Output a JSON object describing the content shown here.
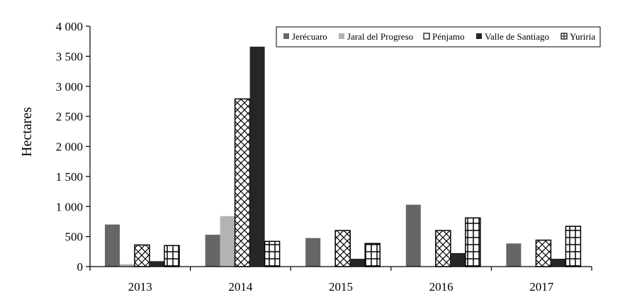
{
  "chart_data": {
    "type": "bar",
    "title": "",
    "xlabel": "",
    "ylabel": "Hectares",
    "ylim": [
      0,
      4000
    ],
    "yticks": [
      0,
      500,
      1000,
      1500,
      2000,
      2500,
      3000,
      3500,
      4000
    ],
    "ytick_labels": [
      "0",
      "500",
      "1 000",
      "1 500",
      "2 000",
      "2 500",
      "3 000",
      "3 500",
      "4 000"
    ],
    "categories": [
      "2013",
      "2014",
      "2015",
      "2016",
      "2017"
    ],
    "series": [
      {
        "name": "Jerécuaro",
        "color": "#666666",
        "pattern": "solid",
        "values": [
          700,
          530,
          475,
          1030,
          385
        ]
      },
      {
        "name": "Jaral del Progreso",
        "color": "#b3b3b3",
        "pattern": "solid",
        "values": [
          40,
          840,
          0,
          0,
          0
        ]
      },
      {
        "name": "Pénjamo",
        "color": "#ffffff",
        "pattern": "zigzag",
        "values": [
          360,
          2790,
          600,
          600,
          440
        ]
      },
      {
        "name": "Valle de Santiago",
        "color": "#262626",
        "pattern": "solid",
        "values": [
          90,
          3660,
          130,
          225,
          130
        ]
      },
      {
        "name": "Yuriria",
        "color": "#ffffff",
        "pattern": "grid",
        "values": [
          350,
          420,
          385,
          810,
          670
        ]
      }
    ],
    "grid": false,
    "legend_position": "top-right"
  }
}
